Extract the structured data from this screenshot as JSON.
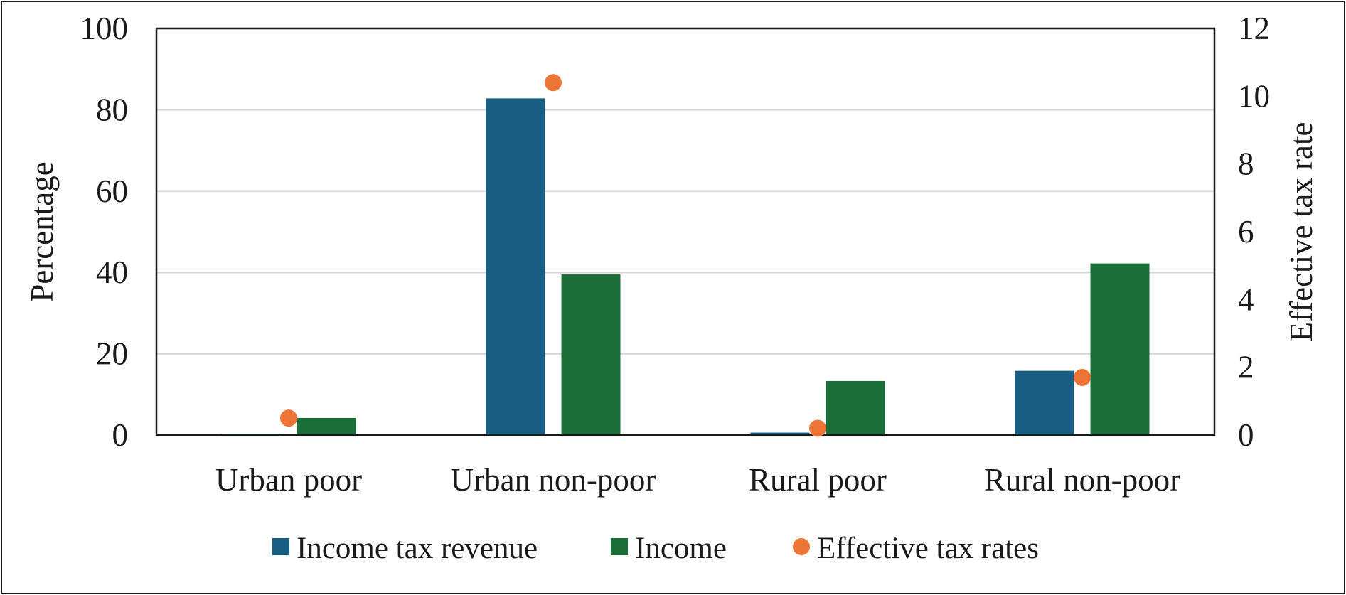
{
  "chart_data": {
    "type": "bar",
    "categories": [
      "Urban poor",
      "Urban non-poor",
      "Rural poor",
      "Rural non-poor"
    ],
    "series": [
      {
        "name": "Income tax revenue",
        "kind": "bar",
        "axis": "left",
        "color": "#175e82",
        "values": [
          0.3,
          82.8,
          0.6,
          15.8
        ]
      },
      {
        "name": "Income",
        "kind": "bar",
        "axis": "left",
        "color": "#1b6e38",
        "values": [
          4.2,
          39.5,
          13.3,
          42.2
        ]
      },
      {
        "name": "Effective tax rates",
        "kind": "dot",
        "axis": "right",
        "color": "#ec7434",
        "values": [
          0.5,
          10.4,
          0.2,
          1.7
        ]
      }
    ],
    "ylabel": "Percentage",
    "y2label": "Effective tax rate",
    "ylim": [
      0,
      100
    ],
    "y2lim": [
      0,
      12
    ],
    "yticks": [
      "0",
      "20",
      "40",
      "60",
      "80",
      "100"
    ],
    "y2ticks": [
      "0",
      "2",
      "4",
      "6",
      "8",
      "10",
      "12"
    ],
    "grid": true,
    "legend_position": "bottom"
  }
}
